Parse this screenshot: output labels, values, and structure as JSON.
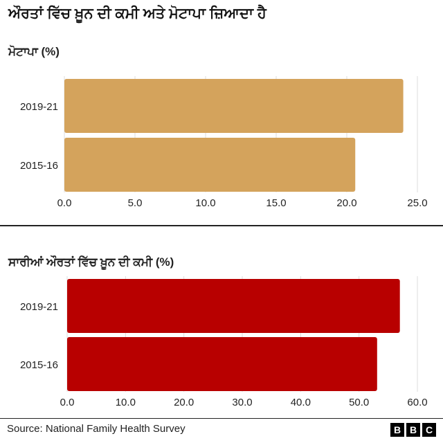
{
  "title": "ਔਰਤਾਂ ਵਿੱਚ ਖ਼ੂਨ ਦੀ ਕਮੀ ਅਤੇ ਮੋਟਾਪਾ ਜ਼ਿਆਦਾ ਹੈ",
  "source": "Source: National Family Health Survey",
  "logo": [
    "B",
    "B",
    "C"
  ],
  "chart_data": [
    {
      "type": "bar",
      "orientation": "horizontal",
      "title": "ਮੋਟਾਪਾ (%)",
      "categories": [
        "2019-21",
        "2015-16"
      ],
      "values": [
        24.0,
        20.6
      ],
      "xlim": [
        0,
        25
      ],
      "xticks": [
        "0.0",
        "5.0",
        "10.0",
        "15.0",
        "20.0",
        "25.0"
      ],
      "color": "#d4a35c",
      "grid": true
    },
    {
      "type": "bar",
      "orientation": "horizontal",
      "title": "ਸਾਰੀਆਂ ਔਰਤਾਂ ਵਿੱਚ ਖ਼ੂਨ ਦੀ ਕਮੀ (%)",
      "categories": [
        "2019-21",
        "2015-16"
      ],
      "values": [
        57.0,
        53.1
      ],
      "xlim": [
        0,
        60
      ],
      "xticks": [
        "0.0",
        "10.0",
        "20.0",
        "30.0",
        "40.0",
        "50.0",
        "60.0"
      ],
      "color": "#b80000",
      "grid": true
    }
  ]
}
